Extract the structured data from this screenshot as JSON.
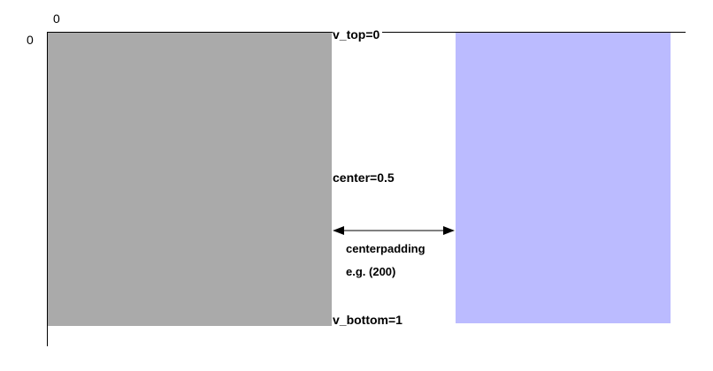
{
  "colors": {
    "left_panel": "#aaaaaa",
    "right_panel": "#bbbbff",
    "axis": "#000000"
  },
  "axis": {
    "x_origin_label": "0",
    "y_origin_label": "0"
  },
  "labels": {
    "v_top": "v_top=0",
    "center": "center=0.5",
    "centerpadding": "centerpadding",
    "example": "e.g. (200)",
    "v_bottom": "v_bottom=1"
  },
  "icons": {
    "padding_arrow": "double-headed-arrow"
  }
}
